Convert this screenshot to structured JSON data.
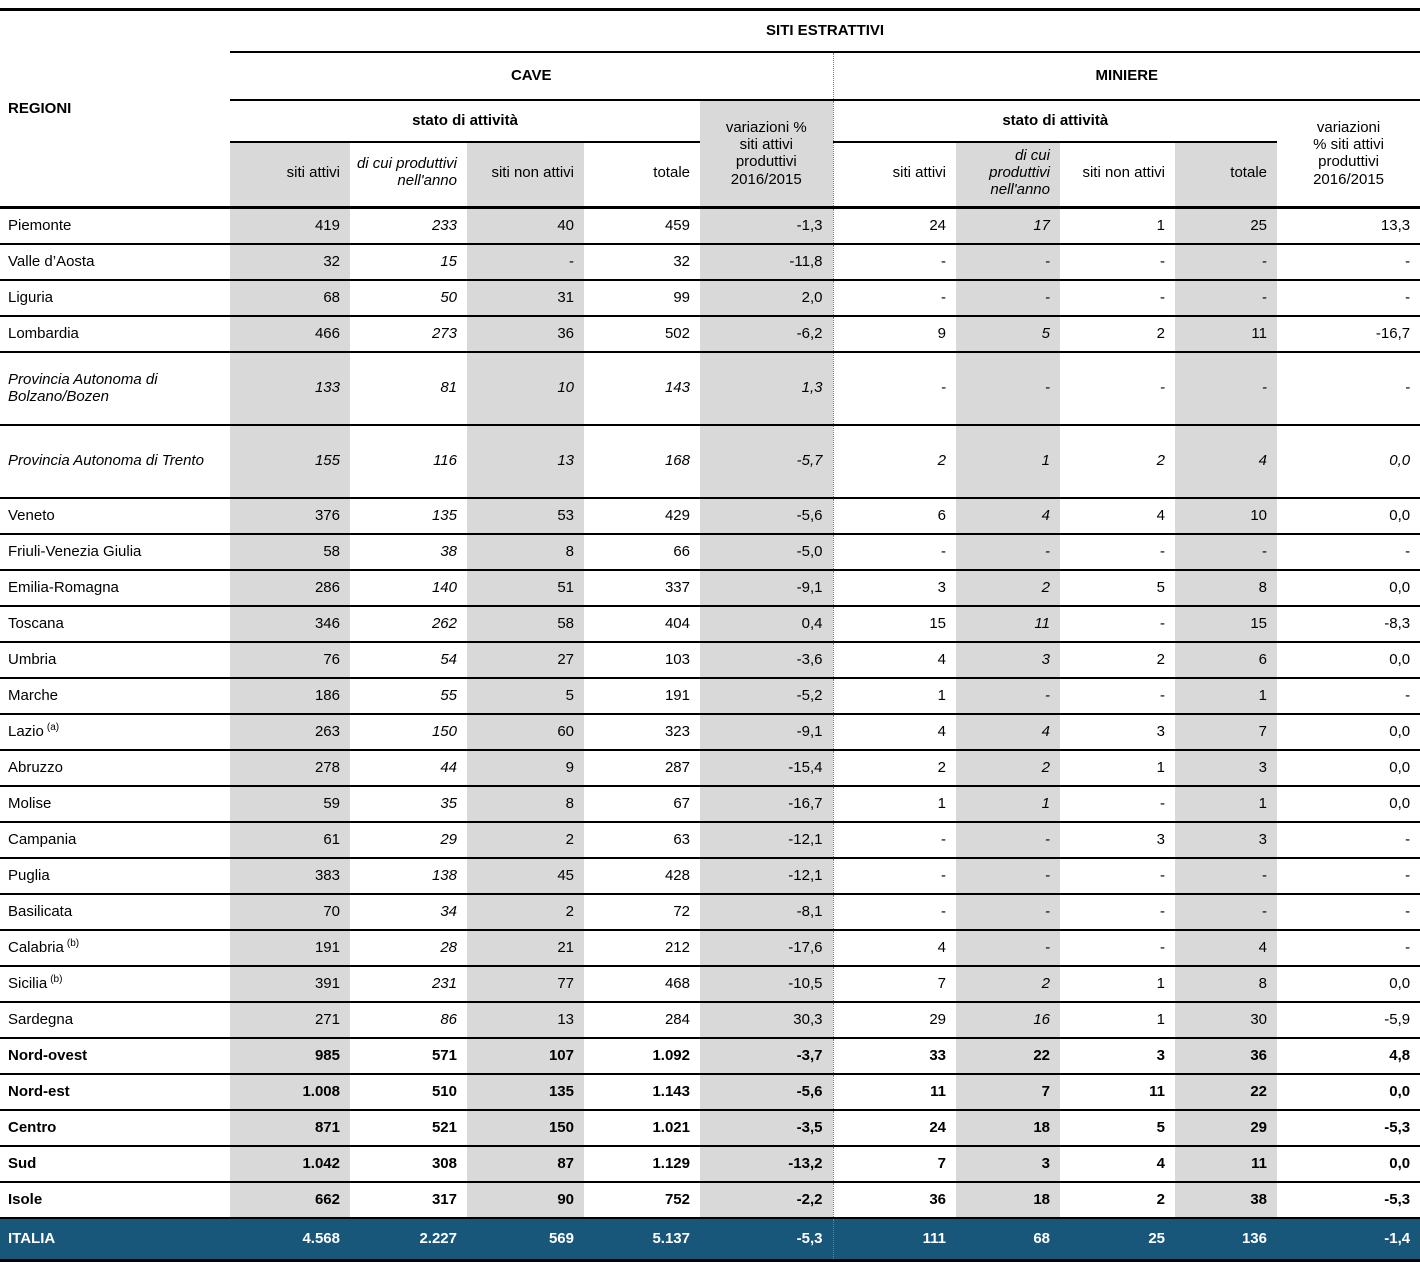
{
  "colors": {
    "shaded_column": "#d9d9d9",
    "italia_row": "#19577a",
    "italia_text": "#ffffff"
  },
  "table": {
    "regions_header": "REGIONI",
    "title": "SITI ESTRATTIVI",
    "groups": [
      {
        "name": "CAVE",
        "stato_label": "stato di attività",
        "columns": [
          "siti attivi",
          "di cui produttivi nell'anno",
          "siti non attivi",
          "totale"
        ],
        "variazioni_label": "variazioni %\nsiti attivi\nproduttivi\n2016/2015"
      },
      {
        "name": "MINIERE",
        "stato_label": "stato di attività",
        "columns": [
          "siti attivi",
          "di cui produttivi nell'anno",
          "siti non attivi",
          "totale"
        ],
        "variazioni_label": "variazioni\n% siti attivi\nproduttivi\n2016/2015"
      }
    ],
    "rows": [
      {
        "label": "Piemonte",
        "style": "normal",
        "cave": [
          "419",
          "233",
          "40",
          "459",
          "-1,3"
        ],
        "miniere": [
          "24",
          "17",
          "1",
          "25",
          "13,3"
        ]
      },
      {
        "label": "Valle d’Aosta",
        "style": "normal",
        "cave": [
          "32",
          "15",
          "-",
          "32",
          "-11,8"
        ],
        "miniere": [
          "-",
          "-",
          "-",
          "-",
          "-"
        ]
      },
      {
        "label": "Liguria",
        "style": "normal",
        "cave": [
          "68",
          "50",
          "31",
          "99",
          "2,0"
        ],
        "miniere": [
          "-",
          "-",
          "-",
          "-",
          "-"
        ]
      },
      {
        "label": "Lombardia",
        "style": "normal",
        "cave": [
          "466",
          "273",
          "36",
          "502",
          "-6,2"
        ],
        "miniere": [
          "9",
          "5",
          "2",
          "11",
          "-16,7"
        ]
      },
      {
        "label": "Provincia Autonoma di Bolzano/Bozen",
        "style": "italic",
        "tall": true,
        "cave": [
          "133",
          "81",
          "10",
          "143",
          "1,3"
        ],
        "miniere": [
          "-",
          "-",
          "-",
          "-",
          "-"
        ]
      },
      {
        "label": "Provincia Autonoma di Trento",
        "style": "italic",
        "tall": true,
        "cave": [
          "155",
          "116",
          "13",
          "168",
          "-5,7"
        ],
        "miniere": [
          "2",
          "1",
          "2",
          "4",
          "0,0"
        ]
      },
      {
        "label": "Veneto",
        "style": "normal",
        "cave": [
          "376",
          "135",
          "53",
          "429",
          "-5,6"
        ],
        "miniere": [
          "6",
          "4",
          "4",
          "10",
          "0,0"
        ]
      },
      {
        "label": "Friuli-Venezia Giulia",
        "style": "normal",
        "cave": [
          "58",
          "38",
          "8",
          "66",
          "-5,0"
        ],
        "miniere": [
          "-",
          "-",
          "-",
          "-",
          "-"
        ]
      },
      {
        "label": "Emilia-Romagna",
        "style": "normal",
        "cave": [
          "286",
          "140",
          "51",
          "337",
          "-9,1"
        ],
        "miniere": [
          "3",
          "2",
          "5",
          "8",
          "0,0"
        ]
      },
      {
        "label": "Toscana",
        "style": "normal",
        "cave": [
          "346",
          "262",
          "58",
          "404",
          "0,4"
        ],
        "miniere": [
          "15",
          "11",
          "-",
          "15",
          "-8,3"
        ]
      },
      {
        "label": "Umbria",
        "style": "normal",
        "cave": [
          "76",
          "54",
          "27",
          "103",
          "-3,6"
        ],
        "miniere": [
          "4",
          "3",
          "2",
          "6",
          "0,0"
        ]
      },
      {
        "label": "Marche",
        "style": "normal",
        "cave": [
          "186",
          "55",
          "5",
          "191",
          "-5,2"
        ],
        "miniere": [
          "1",
          "-",
          "-",
          "1",
          "-"
        ]
      },
      {
        "label": "Lazio",
        "sup": "(a)",
        "style": "normal",
        "cave": [
          "263",
          "150",
          "60",
          "323",
          "-9,1"
        ],
        "miniere": [
          "4",
          "4",
          "3",
          "7",
          "0,0"
        ]
      },
      {
        "label": "Abruzzo",
        "style": "normal",
        "cave": [
          "278",
          "44",
          "9",
          "287",
          "-15,4"
        ],
        "miniere": [
          "2",
          "2",
          "1",
          "3",
          "0,0"
        ]
      },
      {
        "label": "Molise",
        "style": "normal",
        "cave": [
          "59",
          "35",
          "8",
          "67",
          "-16,7"
        ],
        "miniere": [
          "1",
          "1",
          "-",
          "1",
          "0,0"
        ]
      },
      {
        "label": "Campania",
        "style": "normal",
        "cave": [
          "61",
          "29",
          "2",
          "63",
          "-12,1"
        ],
        "miniere": [
          "-",
          "-",
          "3",
          "3",
          "-"
        ]
      },
      {
        "label": "Puglia",
        "style": "normal",
        "cave": [
          "383",
          "138",
          "45",
          "428",
          "-12,1"
        ],
        "miniere": [
          "-",
          "-",
          "-",
          "-",
          "-"
        ]
      },
      {
        "label": "Basilicata",
        "style": "normal",
        "cave": [
          "70",
          "34",
          "2",
          "72",
          "-8,1"
        ],
        "miniere": [
          "-",
          "-",
          "-",
          "-",
          "-"
        ]
      },
      {
        "label": "Calabria",
        "sup": "(b)",
        "style": "normal",
        "cave": [
          "191",
          "28",
          "21",
          "212",
          "-17,6"
        ],
        "miniere": [
          "4",
          "-",
          "-",
          "4",
          "-"
        ]
      },
      {
        "label": "Sicilia",
        "sup": "(b)",
        "style": "normal",
        "cave": [
          "391",
          "231",
          "77",
          "468",
          "-10,5"
        ],
        "miniere": [
          "7",
          "2",
          "1",
          "8",
          "0,0"
        ]
      },
      {
        "label": "Sardegna",
        "style": "normal",
        "cave": [
          "271",
          "86",
          "13",
          "284",
          "30,3"
        ],
        "miniere": [
          "29",
          "16",
          "1",
          "30",
          "-5,9"
        ]
      },
      {
        "label": "Nord-ovest",
        "style": "bold",
        "cave": [
          "985",
          "571",
          "107",
          "1.092",
          "-3,7"
        ],
        "miniere": [
          "33",
          "22",
          "3",
          "36",
          "4,8"
        ]
      },
      {
        "label": "Nord-est",
        "style": "bold",
        "cave": [
          "1.008",
          "510",
          "135",
          "1.143",
          "-5,6"
        ],
        "miniere": [
          "11",
          "7",
          "11",
          "22",
          "0,0"
        ]
      },
      {
        "label": "Centro",
        "style": "bold",
        "cave": [
          "871",
          "521",
          "150",
          "1.021",
          "-3,5"
        ],
        "miniere": [
          "24",
          "18",
          "5",
          "29",
          "-5,3"
        ]
      },
      {
        "label": "Sud",
        "style": "bold",
        "cave": [
          "1.042",
          "308",
          "87",
          "1.129",
          "-13,2"
        ],
        "miniere": [
          "7",
          "3",
          "4",
          "11",
          "0,0"
        ]
      },
      {
        "label": "Isole",
        "style": "bold",
        "cave": [
          "662",
          "317",
          "90",
          "752",
          "-2,2"
        ],
        "miniere": [
          "36",
          "18",
          "2",
          "38",
          "-5,3"
        ]
      },
      {
        "label": "ITALIA",
        "style": "italia",
        "cave": [
          "4.568",
          "2.227",
          "569",
          "5.137",
          "-5,3"
        ],
        "miniere": [
          "111",
          "68",
          "25",
          "136",
          "-1,4"
        ]
      }
    ]
  }
}
